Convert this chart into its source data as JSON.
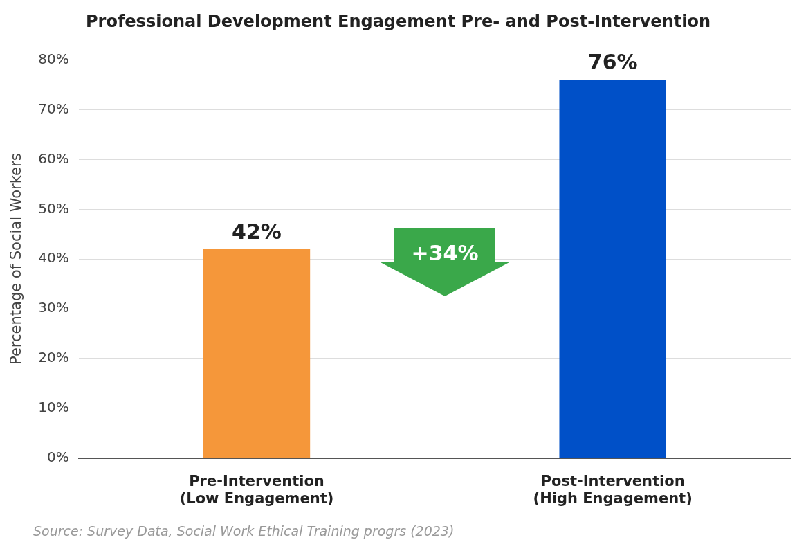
{
  "chart_data": {
    "type": "bar",
    "title": "Professional Development Engagement Pre- and Post-Intervention",
    "ylabel": "Percentage of Social Workers",
    "categories": [
      "Pre-Intervention\n(Low Engagement)",
      "Post-Intervention\n(High Engagement)"
    ],
    "values": [
      42,
      76
    ],
    "colors": [
      "#f5973a",
      "#0050c8"
    ],
    "value_labels": [
      "42%",
      "76%"
    ],
    "ylim": [
      0,
      80
    ],
    "yticks": [
      {
        "value": 0,
        "label": "0%"
      },
      {
        "value": 10,
        "label": "10%"
      },
      {
        "value": 20,
        "label": "20%"
      },
      {
        "value": 30,
        "label": "30%"
      },
      {
        "value": 40,
        "label": "40%"
      },
      {
        "value": 50,
        "label": "50%"
      },
      {
        "value": 60,
        "label": "60%"
      },
      {
        "value": 70,
        "label": "70%"
      },
      {
        "value": 80,
        "label": "80%"
      }
    ],
    "grid": "y",
    "legend": false,
    "annotations": [
      "+34%",
      "Source: Survey Data, Social Work Ethical Training progrs (2023)"
    ]
  }
}
